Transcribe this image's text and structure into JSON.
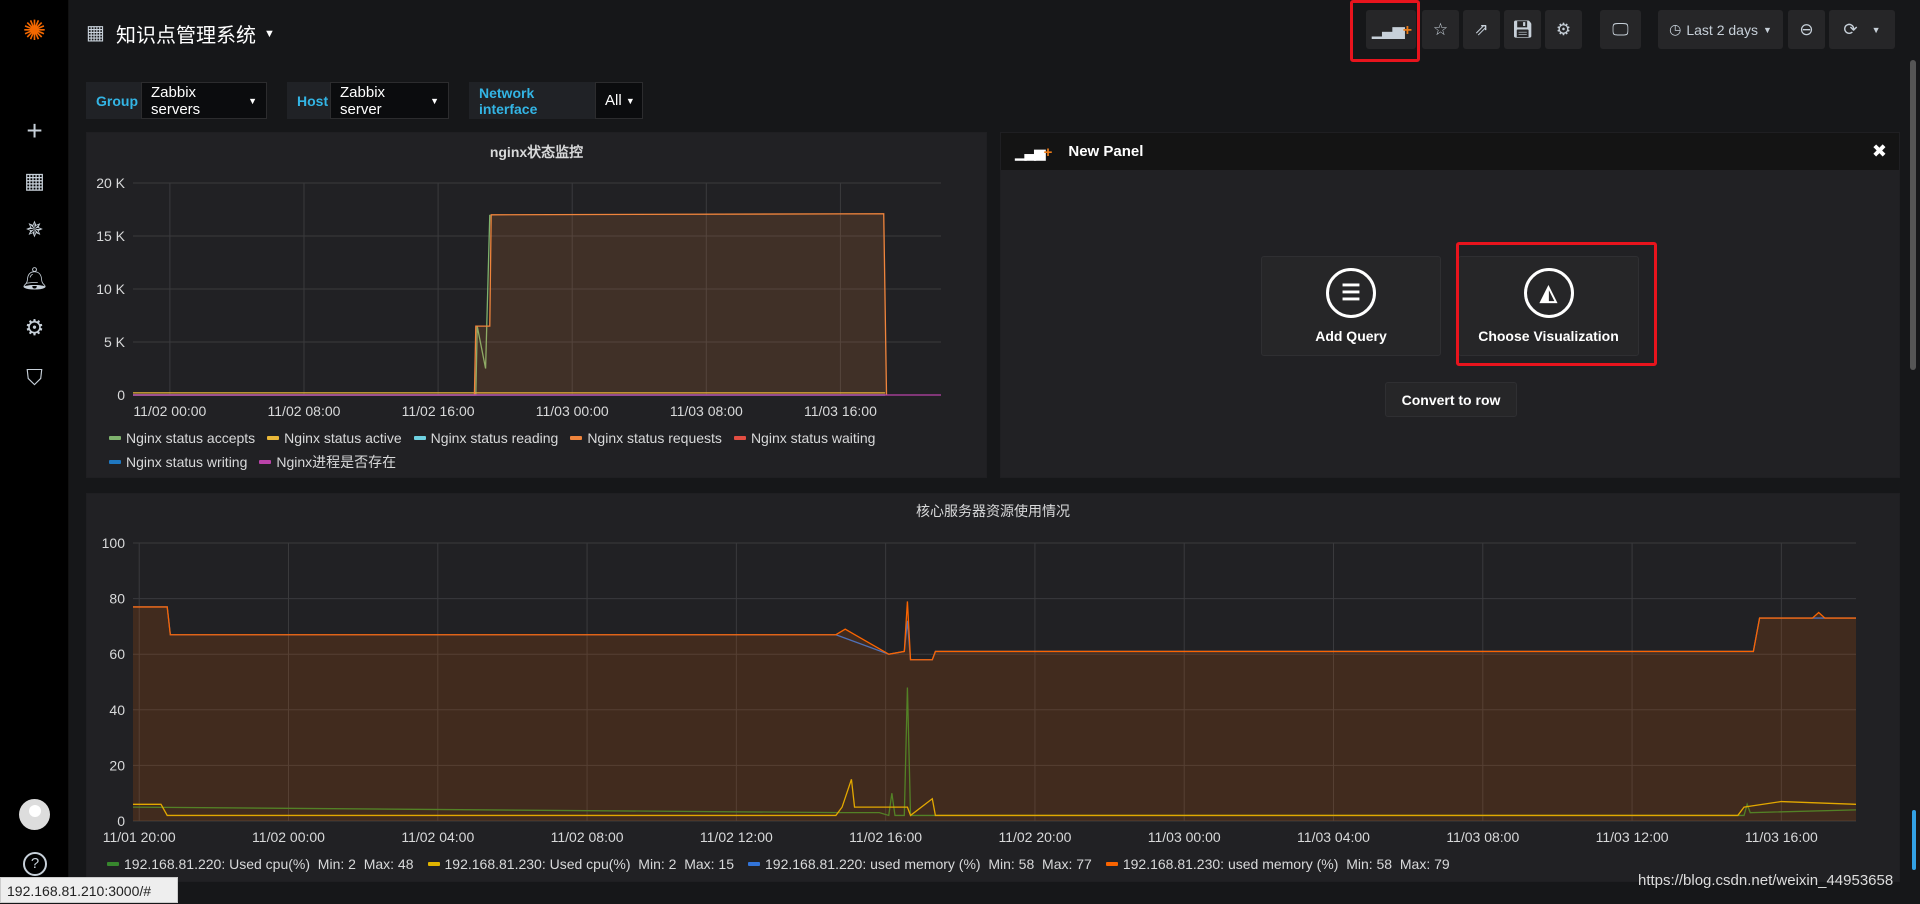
{
  "nav": {
    "title": "知识点管理系统",
    "toolbar": {
      "add_panel": "add-panel",
      "star": "star",
      "share": "share",
      "save": "save",
      "settings": "settings",
      "tv": "cycle-view-mode",
      "time_range": "Last 2 days"
    }
  },
  "sidebar": {
    "items": [
      "grafana-logo",
      "create",
      "dashboards",
      "explore",
      "alerting",
      "configuration",
      "server-admin"
    ],
    "bottom": [
      "avatar",
      "help"
    ]
  },
  "variables": [
    {
      "label": "Group",
      "value": "Zabbix servers"
    },
    {
      "label": "Host",
      "value": "Zabbix server"
    },
    {
      "label": "Network interface",
      "value": "All"
    }
  ],
  "new_panel": {
    "title": "New Panel",
    "add_query": "Add Query",
    "choose_visualization": "Choose Visualization",
    "convert_to_row": "Convert to row"
  },
  "status_url": "192.168.81.210:3000/#",
  "watermark": "https://blog.csdn.net/weixin_44953658",
  "colors": {
    "accent": "#eb7b18",
    "highlight": "#e8141d",
    "variable_label": "#33b5e5"
  },
  "chart_data": [
    {
      "type": "line",
      "title": "nginx状态监控",
      "y_ticks": [
        "0",
        "5 K",
        "10 K",
        "15 K",
        "20 K"
      ],
      "ylim": [
        0,
        20000
      ],
      "x_range": [
        "11/01 21:48",
        "11/03 22:00"
      ],
      "x_ticks": [
        "11/02 00:00",
        "11/02 08:00",
        "11/02 16:00",
        "11/03 00:00",
        "11/03 08:00",
        "11/03 16:00"
      ],
      "grid": true,
      "legend_placement": "bottom",
      "series": [
        {
          "name": "Nginx status accepts",
          "color": "#7eb26d",
          "points": [
            [
              "11/01 21:48",
              0
            ],
            [
              "11/02 18:15",
              0
            ],
            [
              "11/02 18:20",
              6500
            ],
            [
              "11/02 18:50",
              2500
            ],
            [
              "11/02 19:05",
              17000
            ]
          ]
        },
        {
          "name": "Nginx status active",
          "color": "#eab839",
          "points": [
            [
              "11/01 21:48",
              200
            ],
            [
              "11/03 18:40",
              200
            ]
          ]
        },
        {
          "name": "Nginx status reading",
          "color": "#6ed0e0",
          "points": [
            [
              "11/01 21:48",
              0
            ],
            [
              "11/03 18:40",
              0
            ]
          ]
        },
        {
          "name": "Nginx status requests",
          "color": "#ef843c",
          "fill": true,
          "points": [
            [
              "11/01 21:48",
              0
            ],
            [
              "11/02 18:10",
              0
            ],
            [
              "11/02 18:15",
              6500
            ],
            [
              "11/02 19:05",
              6500
            ],
            [
              "11/02 19:10",
              17000
            ],
            [
              "11/03 18:35",
              17100
            ],
            [
              "11/03 18:45",
              0
            ]
          ]
        },
        {
          "name": "Nginx status waiting",
          "color": "#e24d42",
          "points": [
            [
              "11/01 21:48",
              0
            ],
            [
              "11/03 18:40",
              0
            ]
          ]
        },
        {
          "name": "Nginx status writing",
          "color": "#1f78c1",
          "points": [
            [
              "11/01 21:48",
              0
            ],
            [
              "11/03 18:40",
              0
            ]
          ]
        },
        {
          "name": "Nginx进程是否存在",
          "color": "#ba43a9",
          "points": [
            [
              "11/01 21:48",
              1
            ],
            [
              "11/03 22:00",
              1
            ]
          ]
        }
      ]
    },
    {
      "type": "line",
      "title": "核心服务器资源使用情况",
      "y_ticks": [
        "0",
        "20",
        "40",
        "60",
        "80",
        "100"
      ],
      "ylim": [
        0,
        100
      ],
      "x_range": [
        "11/01 19:50",
        "11/03 18:00"
      ],
      "x_ticks": [
        "11/01 20:00",
        "11/02 00:00",
        "11/02 04:00",
        "11/02 08:00",
        "11/02 12:00",
        "11/02 16:00",
        "11/02 20:00",
        "11/03 00:00",
        "11/03 04:00",
        "11/03 08:00",
        "11/03 12:00",
        "11/03 16:00"
      ],
      "grid": true,
      "legend_placement": "bottom",
      "series": [
        {
          "name": "192.168.81.220: Used cpu(%)",
          "min": "2",
          "max": "48",
          "color": "#37872d",
          "points": [
            [
              "11/01 19:50",
              5
            ],
            [
              "11/02 14:50",
              3
            ],
            [
              "11/02 15:50",
              3
            ],
            [
              "11/02 16:05",
              2
            ],
            [
              "11/02 16:10",
              10
            ],
            [
              "11/02 16:15",
              2
            ],
            [
              "11/02 16:30",
              2
            ],
            [
              "11/02 16:35",
              48
            ],
            [
              "11/02 16:40",
              2
            ],
            [
              "11/03 15:00",
              2
            ],
            [
              "11/03 15:05",
              6
            ],
            [
              "11/03 15:10",
              3
            ],
            [
              "11/03 18:00",
              4
            ]
          ]
        },
        {
          "name": "192.168.81.230: Used cpu(%)",
          "min": "2",
          "max": "15",
          "color": "#e0b400",
          "points": [
            [
              "11/01 19:50",
              6
            ],
            [
              "11/01 20:35",
              6
            ],
            [
              "11/01 20:45",
              2
            ],
            [
              "11/02 14:40",
              2
            ],
            [
              "11/02 14:50",
              5
            ],
            [
              "11/02 15:05",
              15
            ],
            [
              "11/02 15:10",
              5
            ],
            [
              "11/02 16:35",
              5
            ],
            [
              "11/02 16:40",
              2
            ],
            [
              "11/02 17:15",
              8
            ],
            [
              "11/02 17:20",
              2
            ],
            [
              "11/03 14:50",
              2
            ],
            [
              "11/03 15:00",
              5
            ],
            [
              "11/03 16:00",
              7
            ],
            [
              "11/03 18:00",
              6
            ]
          ]
        },
        {
          "name": "192.168.81.220: used memory (%)",
          "min": "58",
          "max": "77",
          "color": "#3274d9",
          "points": [
            [
              "11/01 19:50",
              77
            ],
            [
              "11/01 20:45",
              77
            ],
            [
              "11/01 20:50",
              67
            ],
            [
              "11/02 14:40",
              67
            ],
            [
              "11/02 16:05",
              60
            ],
            [
              "11/02 16:30",
              61
            ],
            [
              "11/02 16:35",
              72
            ],
            [
              "11/02 16:40",
              58
            ],
            [
              "11/02 17:15",
              58
            ],
            [
              "11/02 17:20",
              61
            ],
            [
              "11/03 15:15",
              61
            ],
            [
              "11/03 15:25",
              73
            ],
            [
              "11/03 18:00",
              73
            ]
          ]
        },
        {
          "name": "192.168.81.230: used memory (%)",
          "min": "58",
          "max": "79",
          "color": "#fa6400",
          "fill": true,
          "points": [
            [
              "11/01 19:50",
              77
            ],
            [
              "11/01 20:45",
              77
            ],
            [
              "11/01 20:50",
              67
            ],
            [
              "11/02 14:40",
              67
            ],
            [
              "11/02 14:55",
              69
            ],
            [
              "11/02 16:05",
              60
            ],
            [
              "11/02 16:30",
              61
            ],
            [
              "11/02 16:35",
              79
            ],
            [
              "11/02 16:40",
              58
            ],
            [
              "11/02 17:15",
              58
            ],
            [
              "11/02 17:20",
              61
            ],
            [
              "11/03 15:15",
              61
            ],
            [
              "11/03 15:25",
              73
            ],
            [
              "11/03 16:50",
              73
            ],
            [
              "11/03 17:00",
              75
            ],
            [
              "11/03 17:10",
              73
            ],
            [
              "11/03 18:00",
              73
            ]
          ]
        }
      ]
    }
  ]
}
